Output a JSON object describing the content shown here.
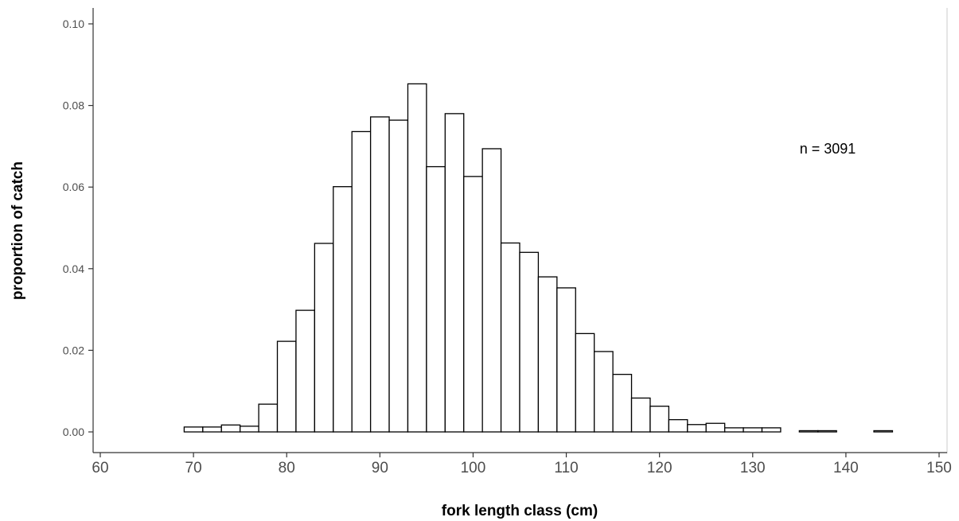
{
  "chart_data": {
    "type": "bar",
    "title": "",
    "xlabel": "fork length class (cm)",
    "ylabel": "proportion of catch",
    "annotation": "n = 3091",
    "xlim": [
      60,
      150
    ],
    "ylim": [
      0,
      0.1
    ],
    "x_ticks": [
      "60",
      "70",
      "80",
      "90",
      "100",
      "110",
      "120",
      "130",
      "140",
      "150"
    ],
    "y_ticks": [
      "0.00",
      "0.02",
      "0.04",
      "0.06",
      "0.08",
      "0.10"
    ],
    "bin_width": 2,
    "bins": [
      {
        "x": 70,
        "value": 0.0012
      },
      {
        "x": 72,
        "value": 0.0012
      },
      {
        "x": 74,
        "value": 0.0017
      },
      {
        "x": 76,
        "value": 0.0014
      },
      {
        "x": 78,
        "value": 0.0068
      },
      {
        "x": 80,
        "value": 0.0222
      },
      {
        "x": 82,
        "value": 0.0298
      },
      {
        "x": 84,
        "value": 0.0462
      },
      {
        "x": 86,
        "value": 0.0601
      },
      {
        "x": 88,
        "value": 0.0736
      },
      {
        "x": 90,
        "value": 0.0772
      },
      {
        "x": 92,
        "value": 0.0764
      },
      {
        "x": 94,
        "value": 0.0853
      },
      {
        "x": 96,
        "value": 0.065
      },
      {
        "x": 98,
        "value": 0.078
      },
      {
        "x": 100,
        "value": 0.0626
      },
      {
        "x": 102,
        "value": 0.0694
      },
      {
        "x": 104,
        "value": 0.0463
      },
      {
        "x": 106,
        "value": 0.044
      },
      {
        "x": 108,
        "value": 0.038
      },
      {
        "x": 110,
        "value": 0.0353
      },
      {
        "x": 112,
        "value": 0.0241
      },
      {
        "x": 114,
        "value": 0.0197
      },
      {
        "x": 116,
        "value": 0.0141
      },
      {
        "x": 118,
        "value": 0.0083
      },
      {
        "x": 120,
        "value": 0.0063
      },
      {
        "x": 122,
        "value": 0.003
      },
      {
        "x": 124,
        "value": 0.0018
      },
      {
        "x": 126,
        "value": 0.0021
      },
      {
        "x": 128,
        "value": 0.001
      },
      {
        "x": 130,
        "value": 0.001
      },
      {
        "x": 132,
        "value": 0.001
      },
      {
        "x": 136,
        "value": 0.0003
      },
      {
        "x": 138,
        "value": 0.0003
      },
      {
        "x": 144,
        "value": 0.0003
      }
    ],
    "grid": false,
    "colors": {
      "bar_fill": "#ffffff",
      "bar_stroke": "#000000",
      "axis": "#333333",
      "border": "#e5e5e5"
    }
  }
}
